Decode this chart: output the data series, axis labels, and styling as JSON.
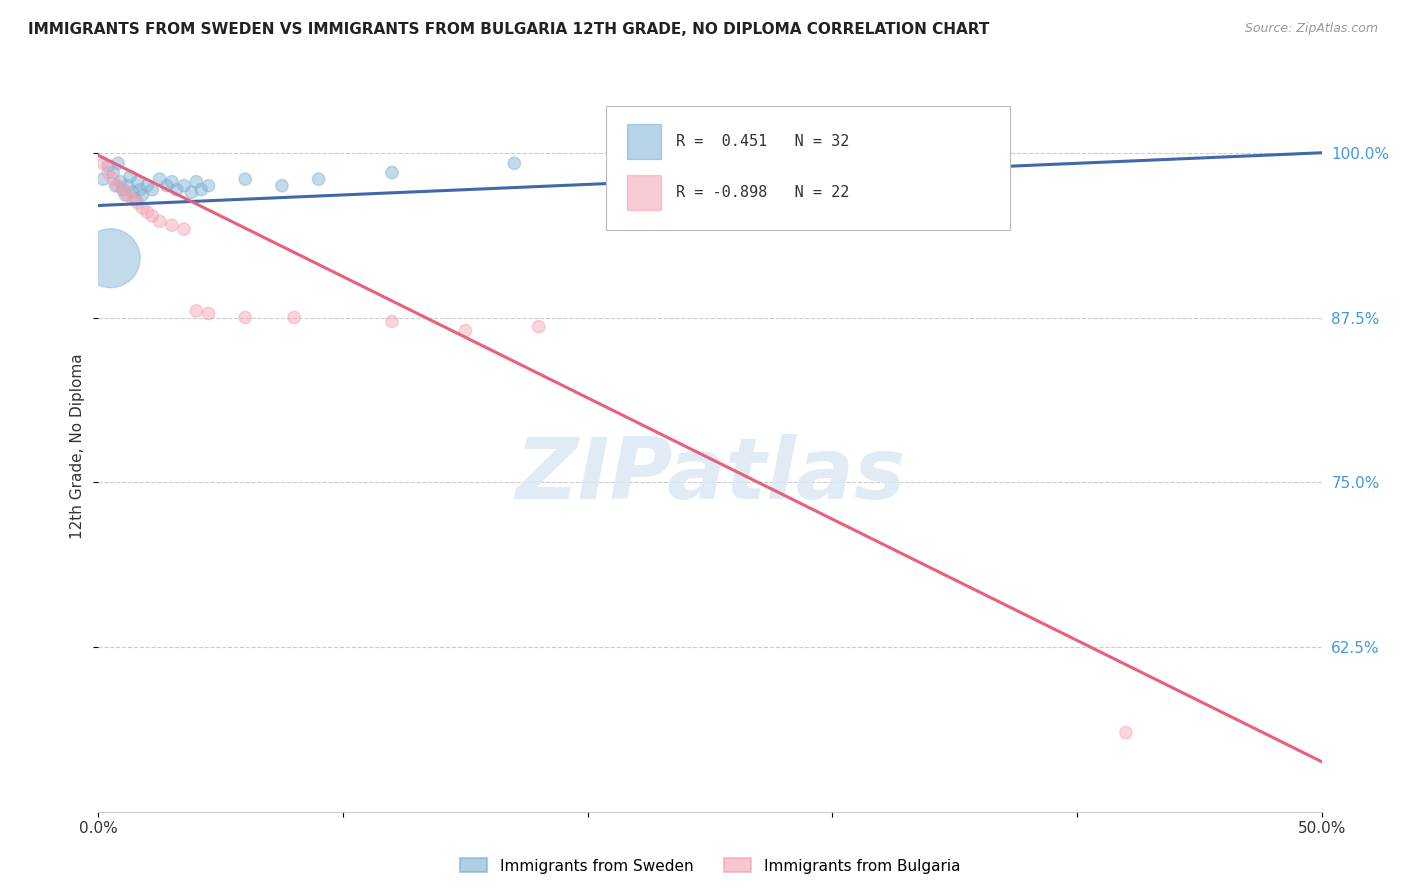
{
  "title": "IMMIGRANTS FROM SWEDEN VS IMMIGRANTS FROM BULGARIA 12TH GRADE, NO DIPLOMA CORRELATION CHART",
  "source": "Source: ZipAtlas.com",
  "ylabel": "12th Grade, No Diploma",
  "ytick_values": [
    0.625,
    0.75,
    0.875,
    1.0
  ],
  "ytick_labels": [
    "62.5%",
    "75.0%",
    "87.5%",
    "100.0%"
  ],
  "xlim": [
    0.0,
    0.5
  ],
  "ylim": [
    0.5,
    1.055
  ],
  "x_ticks": [
    0.0,
    0.1,
    0.2,
    0.3,
    0.4,
    0.5
  ],
  "x_tick_labels": [
    "0.0%",
    "",
    "",
    "",
    "",
    "50.0%"
  ],
  "legend_r_sweden": "0.451",
  "legend_n_sweden": "32",
  "legend_r_bulgaria": "-0.898",
  "legend_n_bulgaria": "22",
  "sweden_color": "#7BAFD4",
  "bulgaria_color": "#F4A0B0",
  "sweden_line_color": "#4169AA",
  "bulgaria_line_color": "#E8607A",
  "watermark_text": "ZIPatlas",
  "sweden_scatter_x": [
    0.002,
    0.004,
    0.006,
    0.007,
    0.008,
    0.009,
    0.01,
    0.011,
    0.012,
    0.013,
    0.014,
    0.015,
    0.016,
    0.017,
    0.018,
    0.02,
    0.022,
    0.025,
    0.028,
    0.03,
    0.032,
    0.035,
    0.038,
    0.04,
    0.042,
    0.045,
    0.06,
    0.075,
    0.09,
    0.12,
    0.17,
    0.005
  ],
  "sweden_scatter_y": [
    0.98,
    0.99,
    0.985,
    0.975,
    0.992,
    0.978,
    0.972,
    0.968,
    0.975,
    0.982,
    0.97,
    0.965,
    0.978,
    0.972,
    0.968,
    0.975,
    0.972,
    0.98,
    0.975,
    0.978,
    0.972,
    0.975,
    0.97,
    0.978,
    0.972,
    0.975,
    0.98,
    0.975,
    0.98,
    0.985,
    0.992,
    0.92
  ],
  "sweden_scatter_sizes": [
    80,
    80,
    80,
    80,
    80,
    80,
    80,
    80,
    80,
    80,
    80,
    80,
    80,
    80,
    80,
    80,
    80,
    80,
    80,
    80,
    80,
    80,
    80,
    80,
    80,
    80,
    80,
    80,
    80,
    80,
    80,
    1800
  ],
  "bulgaria_scatter_x": [
    0.002,
    0.004,
    0.006,
    0.008,
    0.01,
    0.012,
    0.014,
    0.016,
    0.018,
    0.02,
    0.022,
    0.025,
    0.03,
    0.035,
    0.04,
    0.045,
    0.06,
    0.08,
    0.12,
    0.18,
    0.15,
    0.42
  ],
  "bulgaria_scatter_y": [
    0.992,
    0.985,
    0.98,
    0.975,
    0.972,
    0.968,
    0.965,
    0.962,
    0.958,
    0.955,
    0.952,
    0.948,
    0.945,
    0.942,
    0.88,
    0.878,
    0.875,
    0.875,
    0.872,
    0.868,
    0.865,
    0.56
  ],
  "bulgaria_scatter_sizes": [
    80,
    80,
    80,
    80,
    80,
    80,
    80,
    80,
    80,
    80,
    80,
    80,
    80,
    80,
    80,
    80,
    80,
    80,
    80,
    80,
    80,
    80
  ],
  "sweden_line_x": [
    0.0,
    0.5
  ],
  "sweden_line_y": [
    0.96,
    1.0
  ],
  "bulgaria_line_x": [
    0.0,
    0.5
  ],
  "bulgaria_line_y": [
    0.998,
    0.538
  ]
}
